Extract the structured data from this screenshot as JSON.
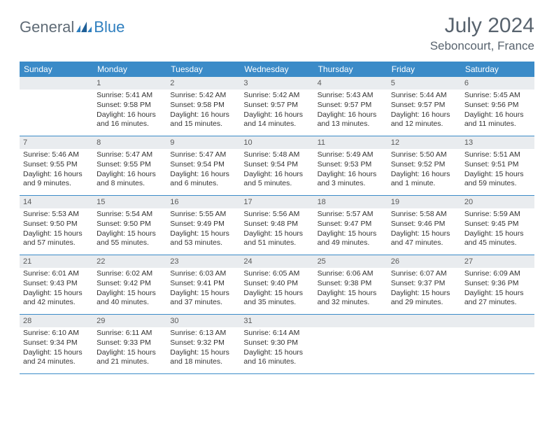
{
  "logo": {
    "part1": "General",
    "part2": "Blue"
  },
  "title": "July 2024",
  "location": "Seboncourt, France",
  "colors": {
    "header_bg": "#3b8bc8",
    "header_text": "#ffffff",
    "daynum_bg": "#e9ecef",
    "border": "#3b8bc8",
    "title_color": "#58636e",
    "logo_gray": "#5f6b76",
    "logo_blue": "#2f7fbf"
  },
  "day_names": [
    "Sunday",
    "Monday",
    "Tuesday",
    "Wednesday",
    "Thursday",
    "Friday",
    "Saturday"
  ],
  "weeks": [
    [
      {
        "n": "",
        "sr": "",
        "ss": "",
        "dl1": "",
        "dl2": ""
      },
      {
        "n": "1",
        "sr": "Sunrise: 5:41 AM",
        "ss": "Sunset: 9:58 PM",
        "dl1": "Daylight: 16 hours",
        "dl2": "and 16 minutes."
      },
      {
        "n": "2",
        "sr": "Sunrise: 5:42 AM",
        "ss": "Sunset: 9:58 PM",
        "dl1": "Daylight: 16 hours",
        "dl2": "and 15 minutes."
      },
      {
        "n": "3",
        "sr": "Sunrise: 5:42 AM",
        "ss": "Sunset: 9:57 PM",
        "dl1": "Daylight: 16 hours",
        "dl2": "and 14 minutes."
      },
      {
        "n": "4",
        "sr": "Sunrise: 5:43 AM",
        "ss": "Sunset: 9:57 PM",
        "dl1": "Daylight: 16 hours",
        "dl2": "and 13 minutes."
      },
      {
        "n": "5",
        "sr": "Sunrise: 5:44 AM",
        "ss": "Sunset: 9:57 PM",
        "dl1": "Daylight: 16 hours",
        "dl2": "and 12 minutes."
      },
      {
        "n": "6",
        "sr": "Sunrise: 5:45 AM",
        "ss": "Sunset: 9:56 PM",
        "dl1": "Daylight: 16 hours",
        "dl2": "and 11 minutes."
      }
    ],
    [
      {
        "n": "7",
        "sr": "Sunrise: 5:46 AM",
        "ss": "Sunset: 9:55 PM",
        "dl1": "Daylight: 16 hours",
        "dl2": "and 9 minutes."
      },
      {
        "n": "8",
        "sr": "Sunrise: 5:47 AM",
        "ss": "Sunset: 9:55 PM",
        "dl1": "Daylight: 16 hours",
        "dl2": "and 8 minutes."
      },
      {
        "n": "9",
        "sr": "Sunrise: 5:47 AM",
        "ss": "Sunset: 9:54 PM",
        "dl1": "Daylight: 16 hours",
        "dl2": "and 6 minutes."
      },
      {
        "n": "10",
        "sr": "Sunrise: 5:48 AM",
        "ss": "Sunset: 9:54 PM",
        "dl1": "Daylight: 16 hours",
        "dl2": "and 5 minutes."
      },
      {
        "n": "11",
        "sr": "Sunrise: 5:49 AM",
        "ss": "Sunset: 9:53 PM",
        "dl1": "Daylight: 16 hours",
        "dl2": "and 3 minutes."
      },
      {
        "n": "12",
        "sr": "Sunrise: 5:50 AM",
        "ss": "Sunset: 9:52 PM",
        "dl1": "Daylight: 16 hours",
        "dl2": "and 1 minute."
      },
      {
        "n": "13",
        "sr": "Sunrise: 5:51 AM",
        "ss": "Sunset: 9:51 PM",
        "dl1": "Daylight: 15 hours",
        "dl2": "and 59 minutes."
      }
    ],
    [
      {
        "n": "14",
        "sr": "Sunrise: 5:53 AM",
        "ss": "Sunset: 9:50 PM",
        "dl1": "Daylight: 15 hours",
        "dl2": "and 57 minutes."
      },
      {
        "n": "15",
        "sr": "Sunrise: 5:54 AM",
        "ss": "Sunset: 9:50 PM",
        "dl1": "Daylight: 15 hours",
        "dl2": "and 55 minutes."
      },
      {
        "n": "16",
        "sr": "Sunrise: 5:55 AM",
        "ss": "Sunset: 9:49 PM",
        "dl1": "Daylight: 15 hours",
        "dl2": "and 53 minutes."
      },
      {
        "n": "17",
        "sr": "Sunrise: 5:56 AM",
        "ss": "Sunset: 9:48 PM",
        "dl1": "Daylight: 15 hours",
        "dl2": "and 51 minutes."
      },
      {
        "n": "18",
        "sr": "Sunrise: 5:57 AM",
        "ss": "Sunset: 9:47 PM",
        "dl1": "Daylight: 15 hours",
        "dl2": "and 49 minutes."
      },
      {
        "n": "19",
        "sr": "Sunrise: 5:58 AM",
        "ss": "Sunset: 9:46 PM",
        "dl1": "Daylight: 15 hours",
        "dl2": "and 47 minutes."
      },
      {
        "n": "20",
        "sr": "Sunrise: 5:59 AM",
        "ss": "Sunset: 9:45 PM",
        "dl1": "Daylight: 15 hours",
        "dl2": "and 45 minutes."
      }
    ],
    [
      {
        "n": "21",
        "sr": "Sunrise: 6:01 AM",
        "ss": "Sunset: 9:43 PM",
        "dl1": "Daylight: 15 hours",
        "dl2": "and 42 minutes."
      },
      {
        "n": "22",
        "sr": "Sunrise: 6:02 AM",
        "ss": "Sunset: 9:42 PM",
        "dl1": "Daylight: 15 hours",
        "dl2": "and 40 minutes."
      },
      {
        "n": "23",
        "sr": "Sunrise: 6:03 AM",
        "ss": "Sunset: 9:41 PM",
        "dl1": "Daylight: 15 hours",
        "dl2": "and 37 minutes."
      },
      {
        "n": "24",
        "sr": "Sunrise: 6:05 AM",
        "ss": "Sunset: 9:40 PM",
        "dl1": "Daylight: 15 hours",
        "dl2": "and 35 minutes."
      },
      {
        "n": "25",
        "sr": "Sunrise: 6:06 AM",
        "ss": "Sunset: 9:38 PM",
        "dl1": "Daylight: 15 hours",
        "dl2": "and 32 minutes."
      },
      {
        "n": "26",
        "sr": "Sunrise: 6:07 AM",
        "ss": "Sunset: 9:37 PM",
        "dl1": "Daylight: 15 hours",
        "dl2": "and 29 minutes."
      },
      {
        "n": "27",
        "sr": "Sunrise: 6:09 AM",
        "ss": "Sunset: 9:36 PM",
        "dl1": "Daylight: 15 hours",
        "dl2": "and 27 minutes."
      }
    ],
    [
      {
        "n": "28",
        "sr": "Sunrise: 6:10 AM",
        "ss": "Sunset: 9:34 PM",
        "dl1": "Daylight: 15 hours",
        "dl2": "and 24 minutes."
      },
      {
        "n": "29",
        "sr": "Sunrise: 6:11 AM",
        "ss": "Sunset: 9:33 PM",
        "dl1": "Daylight: 15 hours",
        "dl2": "and 21 minutes."
      },
      {
        "n": "30",
        "sr": "Sunrise: 6:13 AM",
        "ss": "Sunset: 9:32 PM",
        "dl1": "Daylight: 15 hours",
        "dl2": "and 18 minutes."
      },
      {
        "n": "31",
        "sr": "Sunrise: 6:14 AM",
        "ss": "Sunset: 9:30 PM",
        "dl1": "Daylight: 15 hours",
        "dl2": "and 16 minutes."
      },
      {
        "n": "",
        "sr": "",
        "ss": "",
        "dl1": "",
        "dl2": ""
      },
      {
        "n": "",
        "sr": "",
        "ss": "",
        "dl1": "",
        "dl2": ""
      },
      {
        "n": "",
        "sr": "",
        "ss": "",
        "dl1": "",
        "dl2": ""
      }
    ]
  ]
}
